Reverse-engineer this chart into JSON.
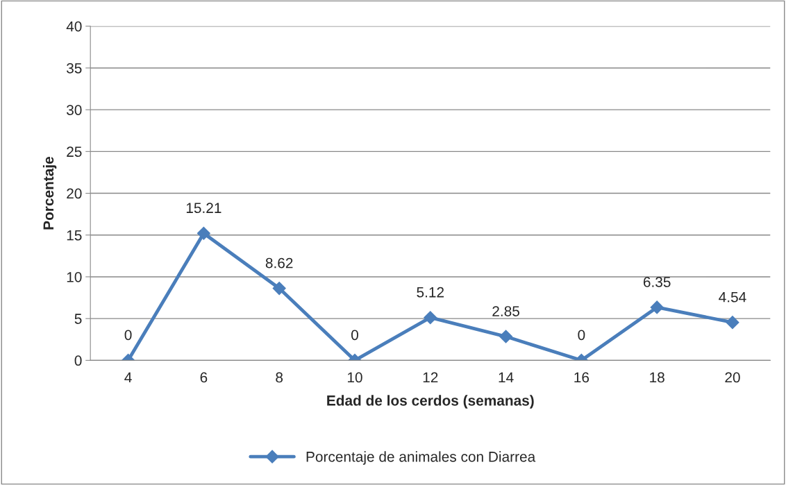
{
  "chart_data": {
    "type": "line",
    "xlabel": "Edad de los cerdos (semanas)",
    "ylabel": "Porcentaje",
    "categories": [
      "4",
      "6",
      "8",
      "10",
      "12",
      "14",
      "16",
      "18",
      "20"
    ],
    "series": [
      {
        "name": "Porcentaje de animales con Diarrea",
        "color": "#4a7ebb",
        "values": [
          0,
          15.21,
          8.62,
          0,
          5.12,
          2.85,
          0,
          6.35,
          4.54
        ]
      }
    ],
    "ylim": [
      0,
      40
    ],
    "yticks": [
      0,
      5,
      10,
      15,
      20,
      25,
      30,
      35,
      40
    ],
    "grid": "y",
    "legend": "bottom",
    "marker": "diamond",
    "line_style": "solid",
    "data_labels": true
  }
}
